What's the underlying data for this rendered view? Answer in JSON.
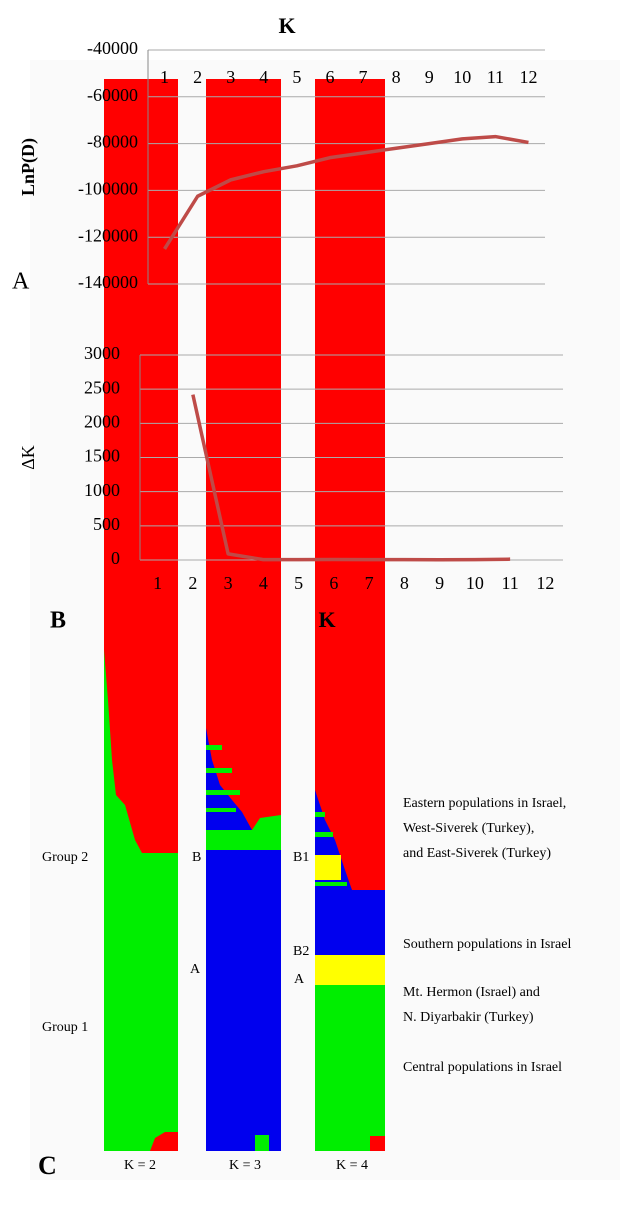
{
  "chart_data": [
    {
      "type": "line",
      "panel_label": "A",
      "x_label": "K",
      "y_label": "LnP(D)",
      "categories": [
        1,
        2,
        3,
        4,
        5,
        6,
        7,
        8,
        9,
        10,
        11,
        12
      ],
      "values": [
        -125000,
        -102500,
        -95500,
        -92000,
        -89500,
        -86000,
        -84000,
        -82000,
        -80000,
        -78000,
        -77000,
        -79500
      ],
      "color": "#be4b48",
      "ylim": [
        -140000,
        -40000
      ],
      "yticks": [
        -140000,
        -120000,
        -100000,
        -80000,
        -60000,
        -40000
      ],
      "grid": true
    },
    {
      "type": "line",
      "panel_label": "B",
      "x_label": "K",
      "y_label": "ΔK",
      "categories": [
        1,
        2,
        3,
        4,
        5,
        6,
        7,
        8,
        9,
        10,
        11,
        12
      ],
      "values": [
        null,
        2420,
        90,
        5,
        5,
        8,
        5,
        5,
        3,
        5,
        12,
        null
      ],
      "color": "#be4b48",
      "ylim": [
        0,
        3000
      ],
      "yticks": [
        0,
        500,
        1000,
        1500,
        2000,
        2500,
        3000
      ],
      "grid": true
    }
  ],
  "panel_c": {
    "panel_label": "C",
    "k_labels": [
      "K = 2",
      "K = 3",
      "K = 4"
    ],
    "group_labels": [
      "Group 2",
      "Group 1"
    ],
    "k3_labels": [
      "B",
      "A"
    ],
    "k4_labels": [
      "B1",
      "B2",
      "A"
    ],
    "descriptions": [
      [
        "Eastern populations in Israel,",
        "West-Siverek (Turkey),",
        "and East-Siverek (Turkey)"
      ],
      [
        "Southern populations in Israel"
      ],
      [
        "Mt. Hermon (Israel)  and",
        "N. Diyarbakir (Turkey)"
      ],
      [
        "Central populations in Israel"
      ]
    ]
  }
}
